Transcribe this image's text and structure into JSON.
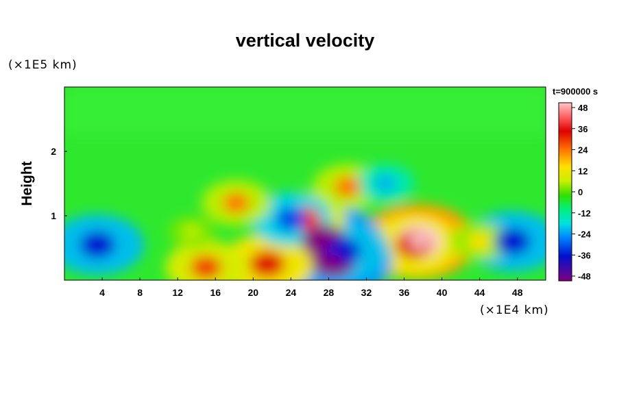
{
  "chart_data": {
    "type": "heatmap",
    "title": "vertical velocity",
    "ylabel": "Height",
    "x_unit": "(×1E4 km)",
    "y_unit": "(×1E5 km)",
    "time_label": "t=900000 s",
    "xlim": [
      0,
      51
    ],
    "ylim": [
      0,
      3
    ],
    "x_ticks": [
      4,
      8,
      12,
      16,
      20,
      24,
      28,
      32,
      36,
      40,
      44,
      48
    ],
    "y_ticks": [
      1,
      2
    ],
    "colorbar": {
      "ticks": [
        48,
        36,
        24,
        12,
        0,
        -12,
        -24,
        -36,
        -48
      ],
      "range": [
        -48,
        48
      ]
    },
    "features": [
      {
        "x": 37.5,
        "y": 0.6,
        "value": 48
      },
      {
        "x": 37.0,
        "y": 0.55,
        "value": 36
      },
      {
        "x": 27.5,
        "y": 0.6,
        "value": -48
      },
      {
        "x": 28.5,
        "y": 0.3,
        "value": -48
      },
      {
        "x": 29.5,
        "y": 0.45,
        "value": -36
      },
      {
        "x": 3.5,
        "y": 0.55,
        "value": -36
      },
      {
        "x": 47.5,
        "y": 0.6,
        "value": -36
      },
      {
        "x": 21.5,
        "y": 0.25,
        "value": 36
      },
      {
        "x": 25.5,
        "y": 0.95,
        "value": 30
      },
      {
        "x": 15.0,
        "y": 0.2,
        "value": 30
      },
      {
        "x": 13.5,
        "y": 0.75,
        "value": 12
      },
      {
        "x": 30.0,
        "y": 1.45,
        "value": 24
      },
      {
        "x": 34.0,
        "y": 1.5,
        "value": -18
      },
      {
        "x": 24.0,
        "y": 0.95,
        "value": -30
      },
      {
        "x": 18.2,
        "y": 1.2,
        "value": 24
      },
      {
        "x": 44.0,
        "y": 0.6,
        "value": 18
      }
    ]
  }
}
